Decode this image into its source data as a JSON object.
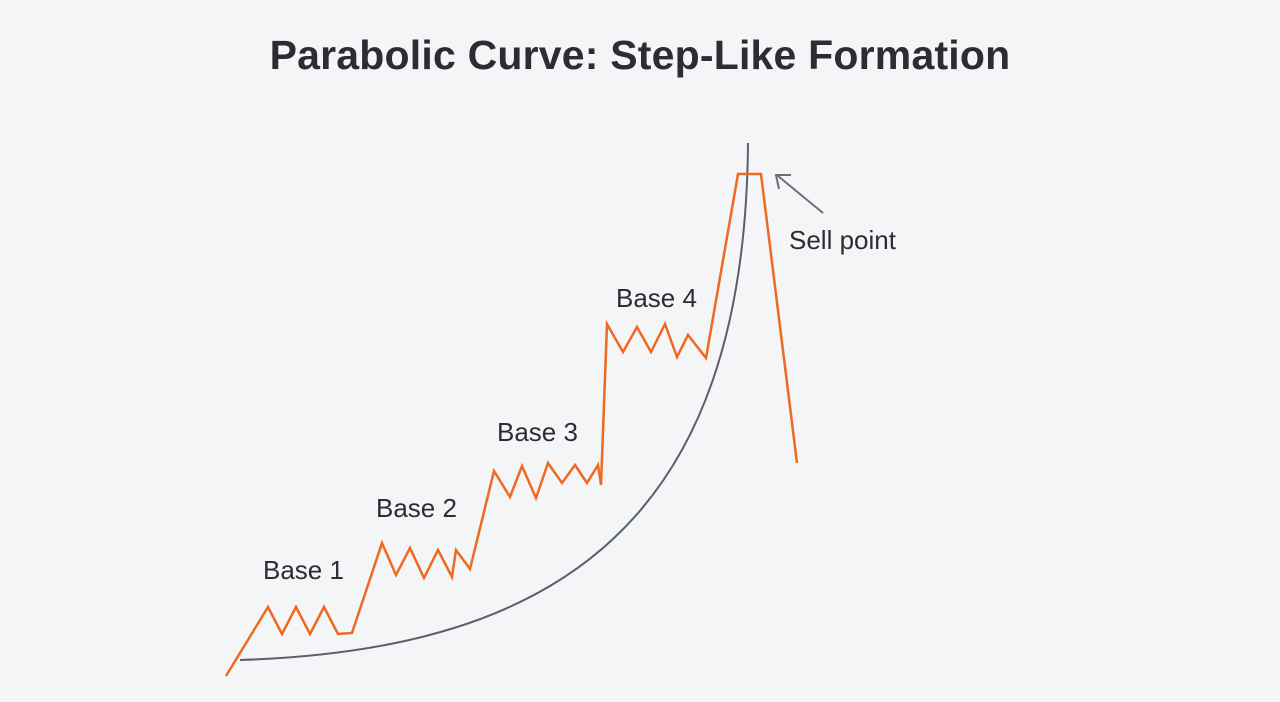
{
  "title": "Parabolic Curve: Step-Like Formation",
  "labels": {
    "base1": "Base 1",
    "base2": "Base 2",
    "base3": "Base 3",
    "base4": "Base 4",
    "sell_point": "Sell point"
  },
  "colors": {
    "background": "#f4f5f7",
    "price_line": "#ef6a1f",
    "parabolic_curve": "#5b5f6a",
    "text": "#2b2d33",
    "arrow": "#6b6f78"
  }
}
